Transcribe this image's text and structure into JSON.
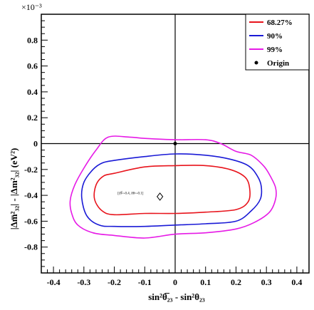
{
  "chart_data": {
    "type": "contour",
    "title": "",
    "xlabel": "sin²θ̅₂₃ - sin²θ₂₃",
    "ylabel": "|Δm̅²₃₂| - |Δm²₃₂| (eV²)",
    "y_multiplier": "×10⁻³",
    "xlim": [
      -0.44,
      0.44
    ],
    "ylim": [
      -0.001,
      0.001
    ],
    "x_ticks": [
      -0.4,
      -0.3,
      -0.2,
      -0.1,
      0,
      0.1,
      0.2,
      0.3,
      0.4
    ],
    "x_tick_labels": [
      "-0.4",
      "-0.3",
      "-0.2",
      "-0.1",
      "0",
      "0.1",
      "0.2",
      "0.3",
      "0.4"
    ],
    "y_ticks": [
      -0.0008,
      -0.0006,
      -0.0004,
      -0.0002,
      0,
      0.0002,
      0.0004,
      0.0006,
      0.0008
    ],
    "y_tick_labels": [
      "-0.8",
      "-0.6",
      "-0.4",
      "-0.2",
      "0",
      "0.2",
      "0.4",
      "0.6",
      "0.8"
    ],
    "reference_lines": {
      "x": 0,
      "y": 0
    },
    "legend_position": "top-right",
    "series": [
      {
        "name": "68.27%",
        "color": "#e8141c",
        "points": [
          [
            -0.2,
            -0.00023
          ],
          [
            -0.1,
            -0.00018
          ],
          [
            0.0,
            -0.00017
          ],
          [
            0.1,
            -0.00017
          ],
          [
            0.18,
            -0.0002
          ],
          [
            0.23,
            -0.00026
          ],
          [
            0.245,
            -0.00035
          ],
          [
            0.24,
            -0.00045
          ],
          [
            0.2,
            -0.00051
          ],
          [
            0.1,
            -0.00053
          ],
          [
            0.0,
            -0.00054
          ],
          [
            -0.1,
            -0.00054
          ],
          [
            -0.2,
            -0.00055
          ],
          [
            -0.24,
            -0.00052
          ],
          [
            -0.265,
            -0.00043
          ],
          [
            -0.26,
            -0.00032
          ],
          [
            -0.235,
            -0.00025
          ]
        ]
      },
      {
        "name": "90%",
        "color": "#1a1ad6",
        "points": [
          [
            -0.2,
            -0.00013
          ],
          [
            -0.1,
            -0.0001
          ],
          [
            0.0,
            -8e-05
          ],
          [
            0.1,
            -9e-05
          ],
          [
            0.18,
            -0.00012
          ],
          [
            0.24,
            -0.00017
          ],
          [
            0.27,
            -0.00025
          ],
          [
            0.283,
            -0.00033
          ],
          [
            0.28,
            -0.00043
          ],
          [
            0.25,
            -0.00052
          ],
          [
            0.2,
            -0.0006
          ],
          [
            0.1,
            -0.00062
          ],
          [
            0.0,
            -0.00063
          ],
          [
            -0.1,
            -0.00064
          ],
          [
            -0.2,
            -0.00064
          ],
          [
            -0.25,
            -0.00063
          ],
          [
            -0.29,
            -0.00056
          ],
          [
            -0.307,
            -0.00042
          ],
          [
            -0.3,
            -0.0003
          ],
          [
            -0.27,
            -0.0002
          ],
          [
            -0.24,
            -0.00015
          ]
        ]
      },
      {
        "name": "99%",
        "color": "#e61ae6",
        "points": [
          [
            -0.22,
            5e-05
          ],
          [
            -0.15,
            5e-05
          ],
          [
            -0.1,
            4e-05
          ],
          [
            0.0,
            3e-05
          ],
          [
            0.1,
            3e-05
          ],
          [
            0.15,
            0.0
          ],
          [
            0.2,
            -6e-05
          ],
          [
            0.25,
            -9e-05
          ],
          [
            0.29,
            -0.00017
          ],
          [
            0.31,
            -0.00024
          ],
          [
            0.33,
            -0.00034
          ],
          [
            0.33,
            -0.00043
          ],
          [
            0.31,
            -0.00053
          ],
          [
            0.26,
            -0.00061
          ],
          [
            0.2,
            -0.00066
          ],
          [
            0.1,
            -0.00069
          ],
          [
            0.0,
            -0.0007
          ],
          [
            -0.1,
            -0.00073
          ],
          [
            -0.2,
            -0.00071
          ],
          [
            -0.27,
            -0.00069
          ],
          [
            -0.32,
            -0.00063
          ],
          [
            -0.34,
            -0.00054
          ],
          [
            -0.345,
            -0.00044
          ],
          [
            -0.33,
            -0.00032
          ],
          [
            -0.3,
            -0.00019
          ],
          [
            -0.26,
            -5e-05
          ]
        ]
      }
    ],
    "origin": {
      "name": "Origin",
      "x": 0,
      "y": 0,
      "color": "#000000"
    },
    "annotation": {
      "text": "[(θ̅=-0.4, δθ=-0.1]",
      "x": -0.1,
      "y": -0.00038
    },
    "diamond_marker": {
      "x": -0.05,
      "y": -0.00041
    }
  }
}
